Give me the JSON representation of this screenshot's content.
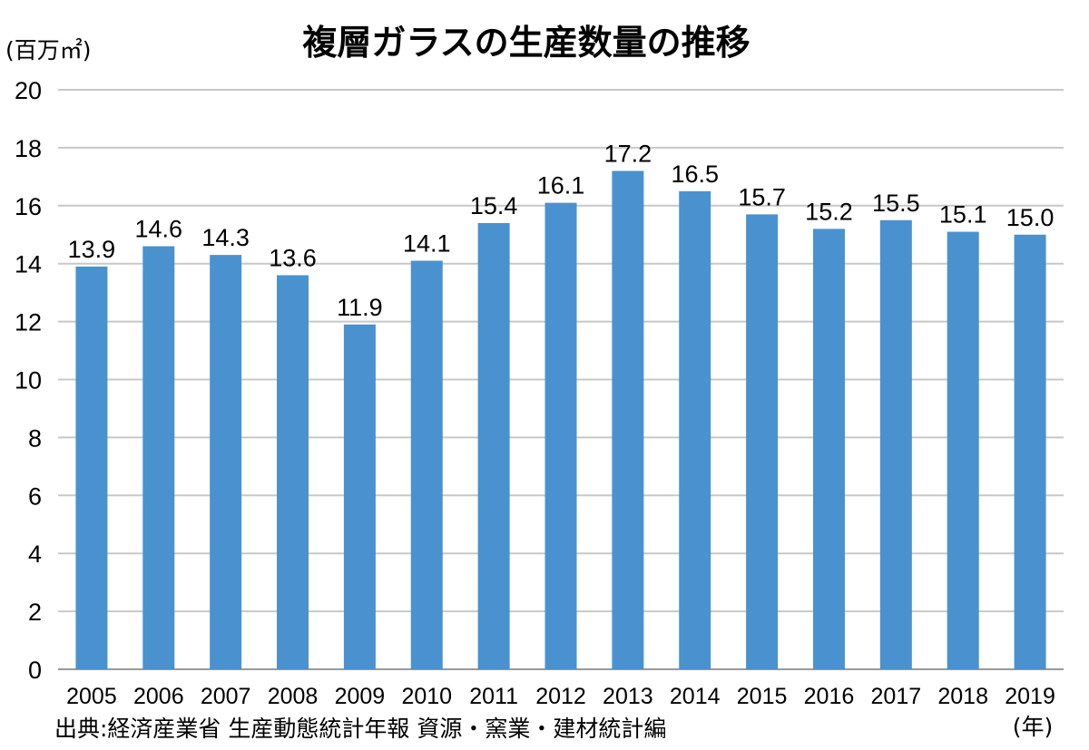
{
  "chart_data": {
    "type": "bar",
    "title": "複層ガラスの生産数量の推移",
    "ylabel": "(百万㎡)",
    "xlabel": "(年)",
    "source": "出典:経済産業省 生産動態統計年報 資源・窯業・建材統計編",
    "ylim": [
      0,
      20
    ],
    "yticks": [
      0,
      2,
      4,
      6,
      8,
      10,
      12,
      14,
      16,
      18,
      20
    ],
    "grid": true,
    "bar_color": "#4a92cf",
    "categories": [
      "2005",
      "2006",
      "2007",
      "2008",
      "2009",
      "2010",
      "2011",
      "2012",
      "2013",
      "2014",
      "2015",
      "2016",
      "2017",
      "2018",
      "2019"
    ],
    "values": [
      13.9,
      14.6,
      14.3,
      13.6,
      11.9,
      14.1,
      15.4,
      16.1,
      17.2,
      16.5,
      15.7,
      15.2,
      15.5,
      15.1,
      15.0
    ],
    "data_labels": [
      "13.9",
      "14.6",
      "14.3",
      "13.6",
      "11.9",
      "14.1",
      "15.4",
      "16.1",
      "17.2",
      "16.5",
      "15.7",
      "15.2",
      "15.5",
      "15.1",
      "15.0"
    ]
  }
}
